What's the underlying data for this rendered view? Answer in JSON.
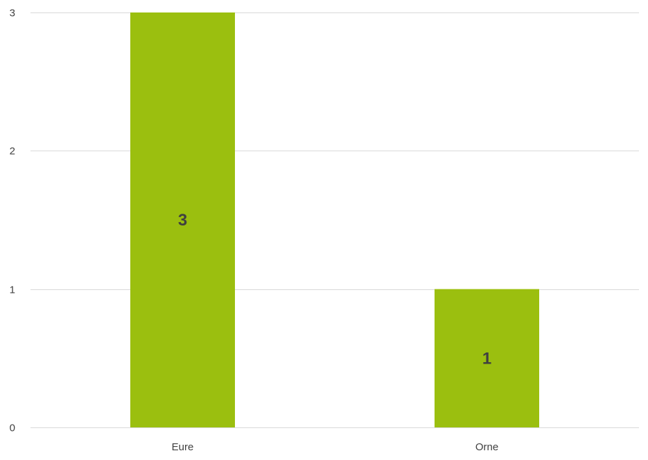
{
  "chart_data": {
    "type": "bar",
    "categories": [
      "Eure",
      "Orne"
    ],
    "values": [
      3,
      1
    ],
    "data_labels": [
      "3",
      "1"
    ],
    "title": "",
    "xlabel": "",
    "ylabel": "",
    "ylim": [
      0,
      3
    ],
    "yticks": [
      0,
      1,
      2,
      3
    ],
    "ytick_labels": [
      "0",
      "1",
      "2",
      "3"
    ],
    "grid": true,
    "legend": "none",
    "colors": {
      "bar": "#9bbf0f",
      "grid": "#d9d9d9",
      "text": "#404040"
    }
  }
}
